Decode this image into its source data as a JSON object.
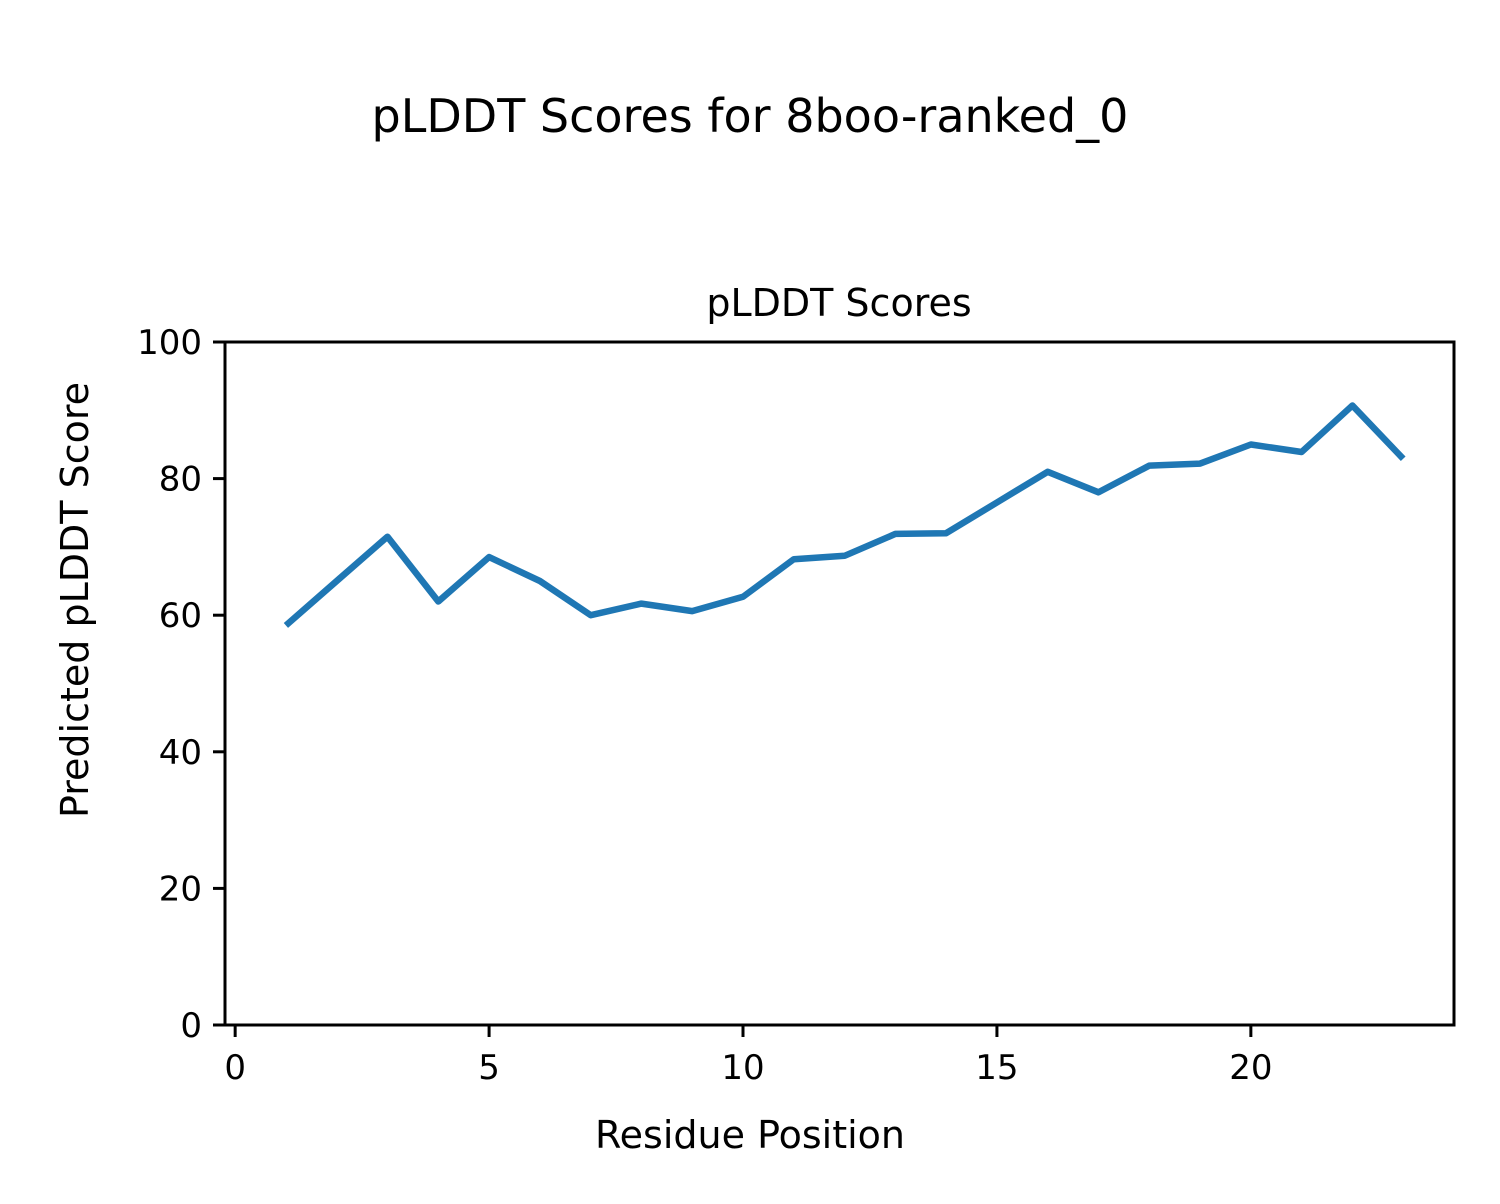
{
  "figure": {
    "suptitle": "pLDDT Scores for 8boo-ranked_0"
  },
  "chart_data": {
    "type": "line",
    "title": "pLDDT Scores",
    "xlabel": "Residue Position",
    "ylabel": "Predicted pLDDT Score",
    "x": [
      1,
      2,
      3,
      4,
      5,
      6,
      7,
      8,
      9,
      10,
      11,
      12,
      13,
      14,
      15,
      16,
      17,
      18,
      19,
      20,
      21,
      22,
      23
    ],
    "y": [
      58.5,
      65.0,
      71.5,
      62.0,
      68.5,
      65.0,
      60.0,
      61.7,
      60.6,
      62.7,
      68.2,
      68.7,
      71.9,
      72.0,
      76.5,
      81.0,
      78.0,
      81.9,
      82.2,
      85.0,
      83.9,
      90.7,
      82.9
    ],
    "xlim": [
      -0.2,
      24.0
    ],
    "ylim": [
      0,
      100
    ],
    "xticks": [
      0,
      5,
      10,
      15,
      20
    ],
    "yticks": [
      0,
      20,
      40,
      60,
      80,
      100
    ],
    "line_color": "#1f77b4",
    "axis_color": "#000000",
    "background": "#ffffff",
    "grid": false,
    "legend_position": "none"
  }
}
